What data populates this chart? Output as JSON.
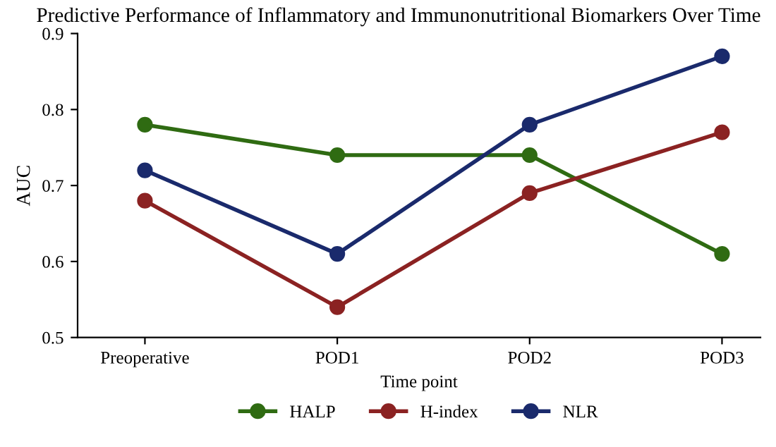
{
  "chart_data": {
    "type": "line",
    "title": "Predictive Performance of Inflammatory and Immunonutritional Biomarkers Over Time",
    "xlabel": "Time point",
    "ylabel": "AUC",
    "categories": [
      "Preoperative",
      "POD1",
      "POD2",
      "POD3"
    ],
    "series": [
      {
        "name": "HALP",
        "color": "#2f6b12",
        "values": [
          0.78,
          0.74,
          0.74,
          0.61
        ]
      },
      {
        "name": "H-index",
        "color": "#8b2222",
        "values": [
          0.68,
          0.54,
          0.69,
          0.77
        ]
      },
      {
        "name": "NLR",
        "color": "#1a2a6c",
        "values": [
          0.72,
          0.61,
          0.78,
          0.87
        ]
      }
    ],
    "ylim": [
      0.5,
      0.9
    ],
    "yticks": [
      0.5,
      0.6,
      0.7,
      0.8,
      0.9
    ],
    "grid": false,
    "legend": "bottom",
    "marker": "circle",
    "line_style": "solid"
  }
}
